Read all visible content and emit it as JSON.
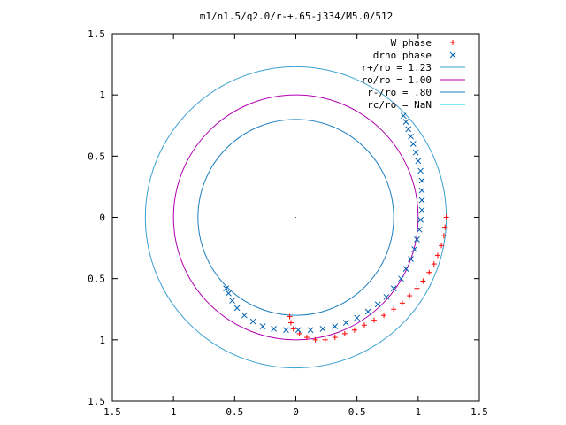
{
  "chart_data": {
    "type": "scatter",
    "title": "m1/n1.5/q2.0/r-+.65-j334/M5.0/512",
    "xlim": [
      -1.5,
      1.5
    ],
    "ylim": [
      -1.5,
      1.5
    ],
    "x_ticks": [
      -1.5,
      -1,
      -0.5,
      0,
      0.5,
      1,
      1.5
    ],
    "x_tick_labels": [
      "1.5",
      "1",
      "0.5",
      "0",
      "0.5",
      "1",
      "1.5"
    ],
    "y_ticks": [
      1.5,
      1,
      0.5,
      0,
      -0.5,
      -1,
      -1.5
    ],
    "y_tick_labels": [
      "1.5",
      "1",
      "0.5",
      "0",
      "0.5",
      "1",
      "1.5"
    ],
    "grid": false,
    "legend_position": "top-right",
    "series": [
      {
        "name": "W phase",
        "kind": "points",
        "marker": "plus",
        "color": "#ff0000",
        "points": [
          [
            1.23,
            0.0
          ],
          [
            1.22,
            -0.08
          ],
          [
            1.21,
            -0.15
          ],
          [
            1.19,
            -0.23
          ],
          [
            1.16,
            -0.31
          ],
          [
            1.13,
            -0.38
          ],
          [
            1.09,
            -0.45
          ],
          [
            1.04,
            -0.52
          ],
          [
            0.99,
            -0.58
          ],
          [
            0.93,
            -0.64
          ],
          [
            0.87,
            -0.7
          ],
          [
            0.8,
            -0.75
          ],
          [
            0.72,
            -0.8
          ],
          [
            0.64,
            -0.84
          ],
          [
            0.56,
            -0.88
          ],
          [
            0.48,
            -0.92
          ],
          [
            0.4,
            -0.95
          ],
          [
            0.32,
            -0.98
          ],
          [
            0.24,
            -1.0
          ],
          [
            0.16,
            -1.0
          ],
          [
            0.09,
            -0.98
          ],
          [
            0.03,
            -0.95
          ],
          [
            -0.02,
            -0.91
          ],
          [
            -0.04,
            -0.86
          ],
          [
            -0.05,
            -0.81
          ]
        ]
      },
      {
        "name": "drho phase",
        "kind": "points",
        "marker": "cross",
        "color": "#0060ad",
        "points": [
          [
            0.88,
            0.83
          ],
          [
            0.9,
            0.78
          ],
          [
            0.92,
            0.72
          ],
          [
            0.94,
            0.66
          ],
          [
            0.96,
            0.6
          ],
          [
            0.98,
            0.53
          ],
          [
            1.0,
            0.46
          ],
          [
            1.02,
            0.38
          ],
          [
            1.03,
            0.3
          ],
          [
            1.03,
            0.22
          ],
          [
            1.03,
            0.14
          ],
          [
            1.03,
            0.06
          ],
          [
            1.02,
            -0.02
          ],
          [
            1.01,
            -0.1
          ],
          [
            0.99,
            -0.18
          ],
          [
            0.97,
            -0.26
          ],
          [
            0.94,
            -0.34
          ],
          [
            0.9,
            -0.42
          ],
          [
            0.86,
            -0.5
          ],
          [
            0.8,
            -0.58
          ],
          [
            0.74,
            -0.65
          ],
          [
            0.67,
            -0.71
          ],
          [
            0.59,
            -0.77
          ],
          [
            0.5,
            -0.82
          ],
          [
            0.41,
            -0.86
          ],
          [
            0.32,
            -0.89
          ],
          [
            0.22,
            -0.91
          ],
          [
            0.12,
            -0.92
          ],
          [
            0.02,
            -0.92
          ],
          [
            -0.08,
            -0.92
          ],
          [
            -0.18,
            -0.91
          ],
          [
            -0.27,
            -0.89
          ],
          [
            -0.35,
            -0.85
          ],
          [
            -0.42,
            -0.8
          ],
          [
            -0.48,
            -0.74
          ],
          [
            -0.52,
            -0.68
          ],
          [
            -0.55,
            -0.62
          ],
          [
            -0.57,
            -0.58
          ]
        ]
      },
      {
        "name": "r+/ro = 1.23",
        "kind": "circle",
        "radius": 1.23,
        "color": "#3aa0d0"
      },
      {
        "name": "ro/ro = 1.00",
        "kind": "circle",
        "radius": 1.0,
        "color": "#b000b0"
      },
      {
        "name": "r-/ro = .80",
        "kind": "circle",
        "radius": 0.8,
        "color": "#1e7fbf"
      },
      {
        "name": "rc/ro = NaN",
        "kind": "circle",
        "radius": null,
        "color": "#00d0e0"
      }
    ]
  }
}
